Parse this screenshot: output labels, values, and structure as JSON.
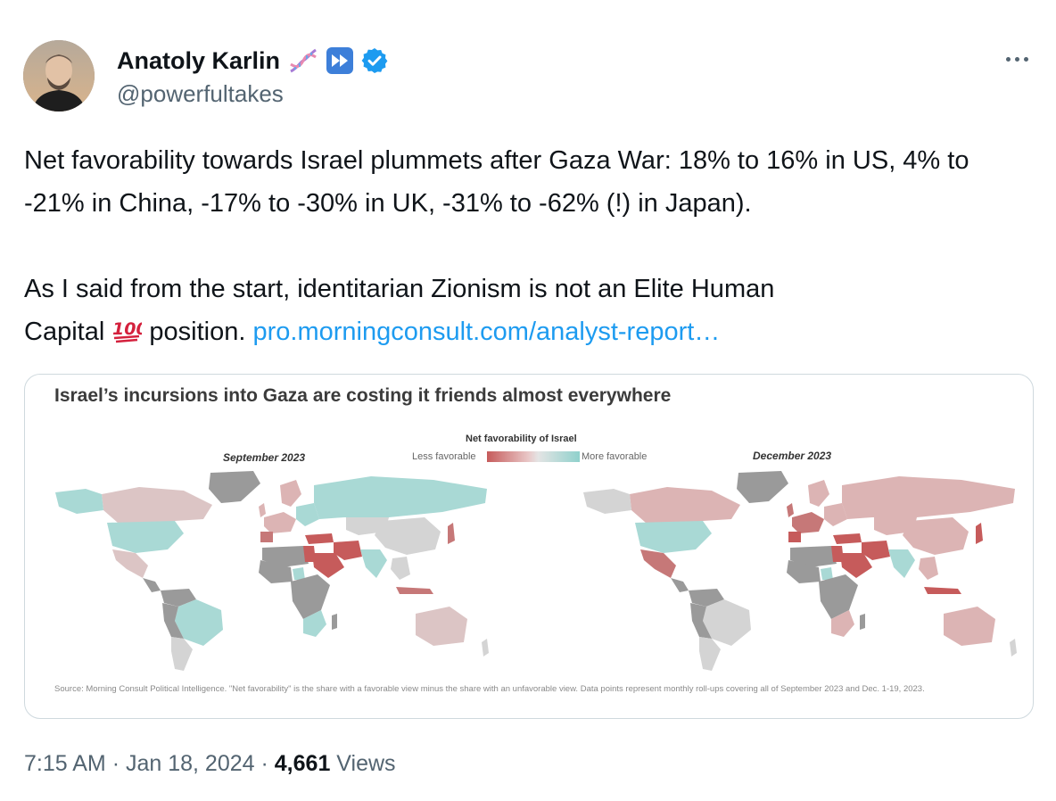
{
  "author": {
    "display_name": "Anatoly Karlin",
    "handle": "@powerfultakes",
    "badges": [
      "dna-emoji-icon",
      "fast-forward-icon",
      "verified-badge-icon"
    ]
  },
  "tweet": {
    "paragraph1": "Net favorability towards Israel plummets after Gaza War: 18% to 16% in US, 4% to -21% in China, -17% to -30% in UK, -31% to -62% (!) in Japan).",
    "paragraph2_text_line1": "As I said from the start, identitarian Zionism is not an Elite Human",
    "paragraph2_text_line2_pre": "Capital",
    "paragraph2_text_line2_post": "position.",
    "link_text": "pro.morningconsult.com/analyst-report…"
  },
  "card": {
    "title": "Israel’s incursions into Gaza are costing it friends almost everywhere",
    "legend_title": "Net favorability of Israel",
    "legend_less": "Less favorable",
    "legend_more": "More favorable",
    "map_left_label": "September 2023",
    "map_right_label": "December 2023",
    "source": "Source: Morning Consult Political Intelligence. \"Net favorability\" is the share with a favorable view minus the share with an unfavorable view. Data points represent monthly roll-ups covering all of September 2023 and Dec. 1-19, 2023.",
    "colors": {
      "strong_negative": "#c65b5b",
      "mild_negative": "#dcb4b4",
      "neutral": "#d4d4d4",
      "positive": "#a9d9d5",
      "no_data": "#9a9a9a"
    }
  },
  "footer": {
    "time": "7:15 AM",
    "separator": "·",
    "date": "Jan 18, 2024",
    "views_count": "4,661",
    "views_label": "Views"
  }
}
